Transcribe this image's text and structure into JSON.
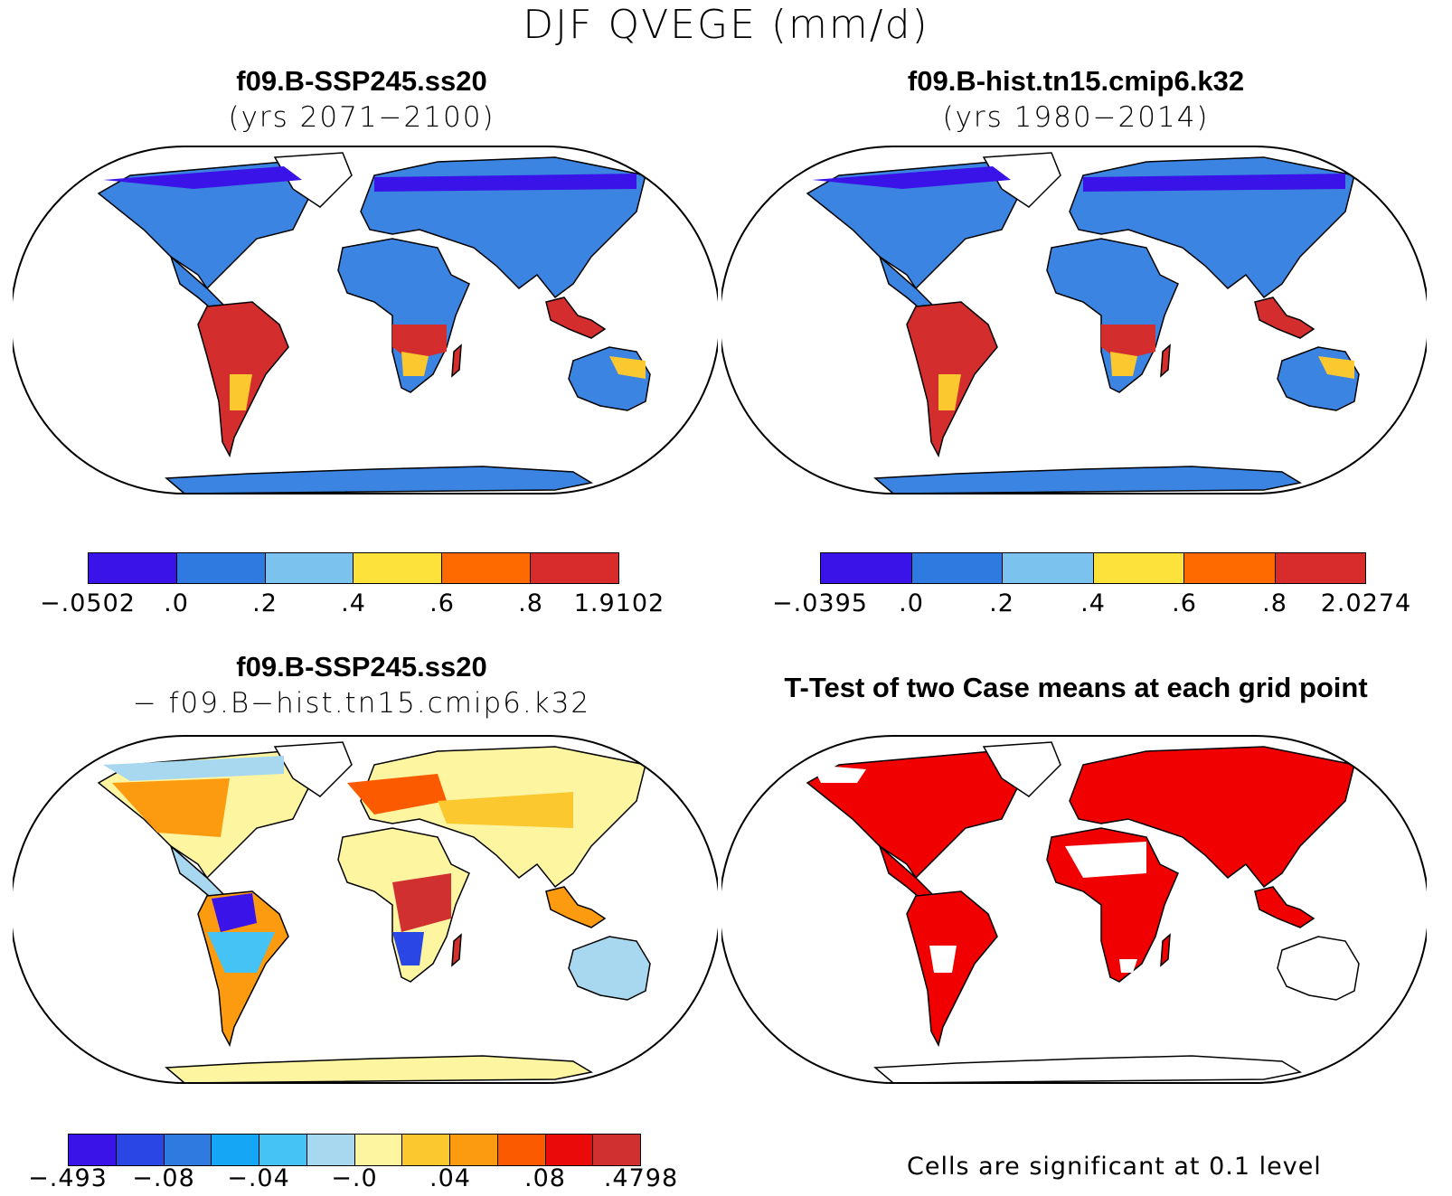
{
  "figure_title": "DJF QVEGE (mm/d)",
  "panels": [
    {
      "title": "f09.B-SSP245.ss20",
      "subtitle": "(yrs 2071−2100)",
      "colorbar": {
        "colors": [
          "#3a13e8",
          "#2f7ae0",
          "#7cc2ee",
          "#fde23c",
          "#ff6a00",
          "#d82b2b"
        ],
        "labels": [
          "−.0502",
          ".0",
          ".2",
          ".4",
          ".6",
          ".8",
          "1.9102"
        ]
      }
    },
    {
      "title": "f09.B-hist.tn15.cmip6.k32",
      "subtitle": "(yrs 1980−2014)",
      "colorbar": {
        "colors": [
          "#3a13e8",
          "#2f7ae0",
          "#7cc2ee",
          "#fde23c",
          "#ff6a00",
          "#d82b2b"
        ],
        "labels": [
          "−.0395",
          ".0",
          ".2",
          ".4",
          ".6",
          ".8",
          "2.0274"
        ]
      }
    },
    {
      "title": "f09.B-SSP245.ss20",
      "subtitle": "− f09.B−hist.tn15.cmip6.k32",
      "colorbar": {
        "colors": [
          "#3a13e8",
          "#2a47e6",
          "#2f7ae0",
          "#15a6f5",
          "#46c3f5",
          "#a8d8f0",
          "#fdf5a0",
          "#fcc830",
          "#fc9a10",
          "#fc5a00",
          "#ea0a0a",
          "#d03030"
        ],
        "labels": [
          "−.493",
          "−.08",
          "−.04",
          "−.0",
          ".04",
          ".08",
          ".4798"
        ]
      }
    },
    {
      "title": "T-Test of two Case means at each grid point",
      "note": "Cells are significant at 0.1 level",
      "significance_color": "#f00000"
    }
  ]
}
